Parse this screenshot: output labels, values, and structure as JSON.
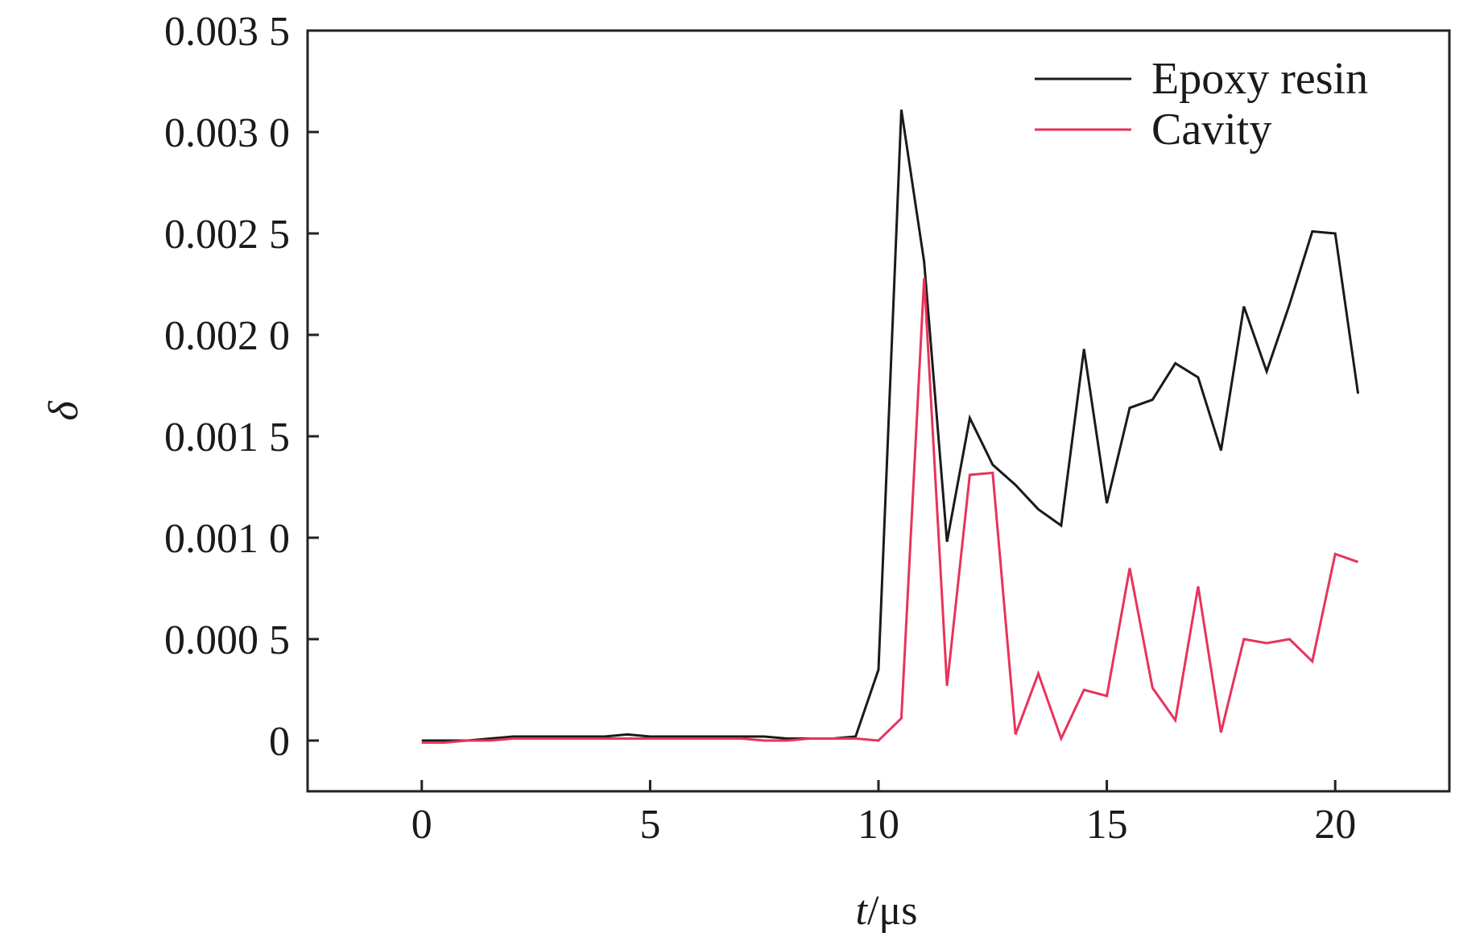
{
  "chart_data": {
    "type": "line",
    "xlabel_italic": "t",
    "xlabel_unit": "/μs",
    "ylabel": "δ",
    "xlim": [
      -2.5,
      22.5
    ],
    "ylim": [
      -0.00025,
      0.0035
    ],
    "x_ticks": [
      0,
      5,
      10,
      15,
      20
    ],
    "x_tick_labels": [
      "0",
      "5",
      "10",
      "15",
      "20"
    ],
    "y_ticks": [
      0,
      0.0005,
      0.001,
      0.0015,
      0.002,
      0.0025,
      0.003,
      0.0035
    ],
    "y_tick_labels": [
      "0",
      "0.000 5",
      "0.001 0",
      "0.001 5",
      "0.002 0",
      "0.002 5",
      "0.003 0",
      "0.003 5"
    ],
    "grid": false,
    "legend_position": "top-right",
    "x": [
      0,
      0.5,
      1,
      1.5,
      2,
      2.5,
      3,
      3.5,
      4,
      4.5,
      5,
      5.5,
      6,
      6.5,
      7,
      7.5,
      8,
      8.5,
      9,
      9.5,
      10,
      10.5,
      11,
      11.5,
      12,
      12.5,
      13,
      13.5,
      14,
      14.5,
      15,
      15.5,
      16,
      16.5,
      17,
      17.5,
      18,
      18.5,
      19,
      19.5,
      20,
      20.5
    ],
    "series": [
      {
        "name": "Epoxy resin",
        "color": "#1a1a1a",
        "values": [
          0.0,
          0.0,
          0.0,
          1e-05,
          2e-05,
          2e-05,
          2e-05,
          2e-05,
          2e-05,
          3e-05,
          2e-05,
          2e-05,
          2e-05,
          2e-05,
          2e-05,
          2e-05,
          1e-05,
          1e-05,
          1e-05,
          2e-05,
          0.00035,
          0.00311,
          0.00236,
          0.00098,
          0.00159,
          0.00136,
          0.00126,
          0.00114,
          0.00106,
          0.00193,
          0.00117,
          0.00164,
          0.00168,
          0.00186,
          0.00179,
          0.00143,
          0.00214,
          0.00182,
          0.00215,
          0.00251,
          0.0025,
          0.00171
        ]
      },
      {
        "name": "Cavity",
        "color": "#e8335a",
        "values": [
          -1e-05,
          -1e-05,
          0.0,
          0.0,
          1e-05,
          1e-05,
          1e-05,
          1e-05,
          1e-05,
          1e-05,
          1e-05,
          1e-05,
          1e-05,
          1e-05,
          1e-05,
          0.0,
          0.0,
          1e-05,
          1e-05,
          1e-05,
          0.0,
          0.00011,
          0.00228,
          0.00027,
          0.00131,
          0.00132,
          3e-05,
          0.00033,
          1e-05,
          0.00025,
          0.00022,
          0.00085,
          0.00026,
          0.0001,
          0.00076,
          4e-05,
          0.0005,
          0.00048,
          0.0005,
          0.00039,
          0.00092,
          0.00088
        ]
      }
    ]
  }
}
